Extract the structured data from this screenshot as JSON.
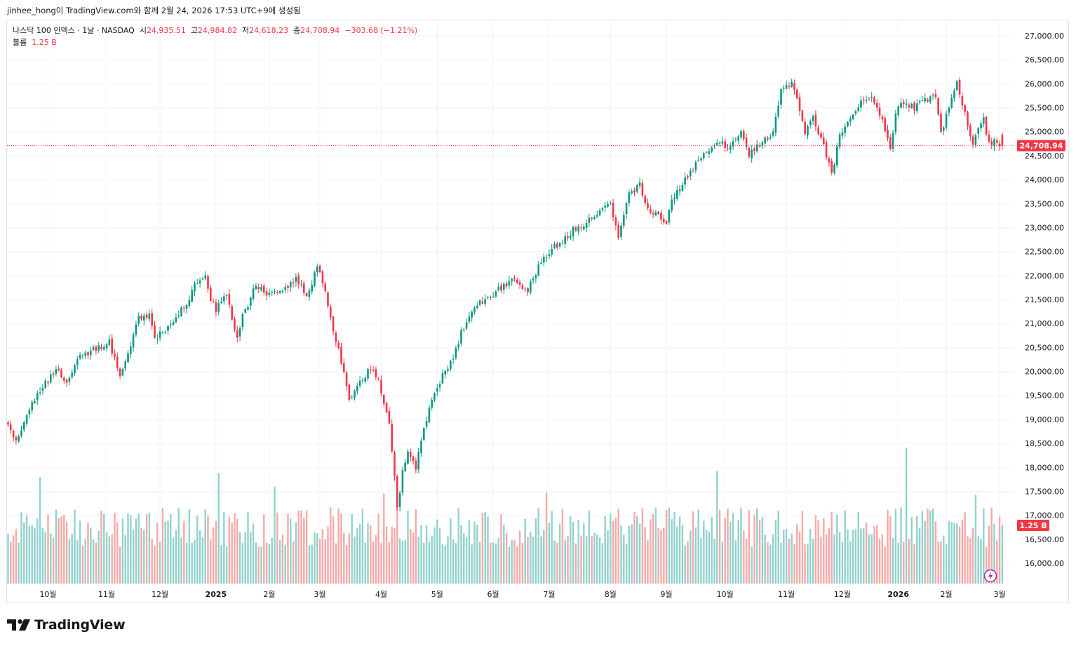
{
  "caption": "jinhee_hong이 TradingView.com와 함께 2월 24, 2026 17:53 UTC+9에 생성됨",
  "legend": {
    "symbol": "나스닥 100 인덱스 · 1날 · NASDAQ",
    "open_label": "시",
    "open": "24,935.51",
    "high_label": "고",
    "high": "24,984.82",
    "low_label": "저",
    "low": "24,618.23",
    "close_label": "종",
    "close": "24,708.94",
    "change": "−303.68 (−1.21%)",
    "volume_label": "볼륨",
    "volume": "1.25 B"
  },
  "logo_text": "TradingView",
  "colors": {
    "up": "#089981",
    "down": "#f23645",
    "vol_up": "#92d2cc",
    "vol_down": "#f7a9a7",
    "grid": "#f0f3fa"
  },
  "chart_data": {
    "type": "candlestick",
    "title": "나스닥 100 인덱스 · 1날 · NASDAQ",
    "price_axis": {
      "ylim": [
        15600,
        27350
      ],
      "ticks": [
        "27,000.00",
        "26,500.00",
        "26,000.00",
        "25,500.00",
        "25,000.00",
        "24,500.00",
        "24,000.00",
        "23,500.00",
        "23,000.00",
        "22,500.00",
        "22,000.00",
        "21,500.00",
        "21,000.00",
        "20,500.00",
        "20,000.00",
        "19,500.00",
        "19,000.00",
        "18,500.00",
        "18,000.00",
        "17,500.00",
        "17,000.00",
        "16,500.00",
        "16,000.00"
      ],
      "last_price_label": "24,708.94",
      "last_price": 24708.94,
      "volume_label": "1.25 B"
    },
    "time_axis": {
      "labels": [
        "10월",
        "11월",
        "12월",
        "2025",
        "2월",
        "3월",
        "4월",
        "5월",
        "6월",
        "7월",
        "8월",
        "9월",
        "10월",
        "11월",
        "12월",
        "2026",
        "2월",
        "3월"
      ],
      "bold": [
        "2025",
        "2026"
      ],
      "label_bar_index": [
        15,
        37,
        57,
        78,
        98,
        117,
        140,
        161,
        182,
        203,
        226,
        247,
        269,
        292,
        313,
        334,
        352,
        372
      ]
    },
    "price_path": [
      [
        0,
        18900
      ],
      [
        3,
        18500
      ],
      [
        8,
        19250
      ],
      [
        14,
        19750
      ],
      [
        18,
        20050
      ],
      [
        22,
        19800
      ],
      [
        27,
        20300
      ],
      [
        32,
        20450
      ],
      [
        38,
        20600
      ],
      [
        42,
        19950
      ],
      [
        46,
        20550
      ],
      [
        49,
        21100
      ],
      [
        53,
        21150
      ],
      [
        55,
        20700
      ],
      [
        60,
        20900
      ],
      [
        63,
        21200
      ],
      [
        66,
        21300
      ],
      [
        70,
        21800
      ],
      [
        74,
        22050
      ],
      [
        76,
        21500
      ],
      [
        78,
        21300
      ],
      [
        82,
        21600
      ],
      [
        86,
        20700
      ],
      [
        88,
        21150
      ],
      [
        93,
        21800
      ],
      [
        98,
        21600
      ],
      [
        103,
        21650
      ],
      [
        108,
        21950
      ],
      [
        112,
        21600
      ],
      [
        116,
        22150
      ],
      [
        118,
        21900
      ],
      [
        121,
        21100
      ],
      [
        125,
        20200
      ],
      [
        128,
        19350
      ],
      [
        132,
        19750
      ],
      [
        136,
        20100
      ],
      [
        139,
        19800
      ],
      [
        143,
        18950
      ],
      [
        146,
        17150
      ],
      [
        148,
        17900
      ],
      [
        150,
        18400
      ],
      [
        153,
        18000
      ],
      [
        156,
        18850
      ],
      [
        160,
        19500
      ],
      [
        164,
        20050
      ],
      [
        167,
        20250
      ],
      [
        170,
        20800
      ],
      [
        175,
        21350
      ],
      [
        180,
        21550
      ],
      [
        185,
        21750
      ],
      [
        190,
        21900
      ],
      [
        195,
        21700
      ],
      [
        200,
        22300
      ],
      [
        206,
        22650
      ],
      [
        212,
        22950
      ],
      [
        218,
        23150
      ],
      [
        222,
        23350
      ],
      [
        226,
        23500
      ],
      [
        229,
        22800
      ],
      [
        233,
        23700
      ],
      [
        237,
        23900
      ],
      [
        240,
        23400
      ],
      [
        243,
        23300
      ],
      [
        247,
        23100
      ],
      [
        249,
        23600
      ],
      [
        254,
        24000
      ],
      [
        258,
        24300
      ],
      [
        262,
        24600
      ],
      [
        266,
        24800
      ],
      [
        270,
        24700
      ],
      [
        275,
        24950
      ],
      [
        278,
        24500
      ],
      [
        283,
        24800
      ],
      [
        287,
        25000
      ],
      [
        290,
        25850
      ],
      [
        294,
        26050
      ],
      [
        297,
        25450
      ],
      [
        299,
        24950
      ],
      [
        302,
        25300
      ],
      [
        306,
        24700
      ],
      [
        309,
        24100
      ],
      [
        312,
        24900
      ],
      [
        316,
        25300
      ],
      [
        320,
        25600
      ],
      [
        324,
        25750
      ],
      [
        327,
        25400
      ],
      [
        329,
        25000
      ],
      [
        331,
        24700
      ],
      [
        333,
        25400
      ],
      [
        336,
        25600
      ],
      [
        340,
        25500
      ],
      [
        344,
        25650
      ],
      [
        348,
        25750
      ],
      [
        350,
        24950
      ],
      [
        353,
        25500
      ],
      [
        356,
        26050
      ],
      [
        359,
        25400
      ],
      [
        362,
        24700
      ],
      [
        364,
        25100
      ],
      [
        366,
        25250
      ],
      [
        368,
        24750
      ],
      [
        371,
        24800
      ],
      [
        373,
        24708.94
      ]
    ],
    "volume_spikes": [
      [
        12,
        17800
      ],
      [
        79,
        17880
      ],
      [
        100,
        17600
      ],
      [
        141,
        17450
      ],
      [
        146,
        17150
      ],
      [
        202,
        17480
      ],
      [
        266,
        17920
      ],
      [
        337,
        18410
      ],
      [
        363,
        17430
      ]
    ],
    "volume_range_px": [
      723,
      780
    ]
  }
}
